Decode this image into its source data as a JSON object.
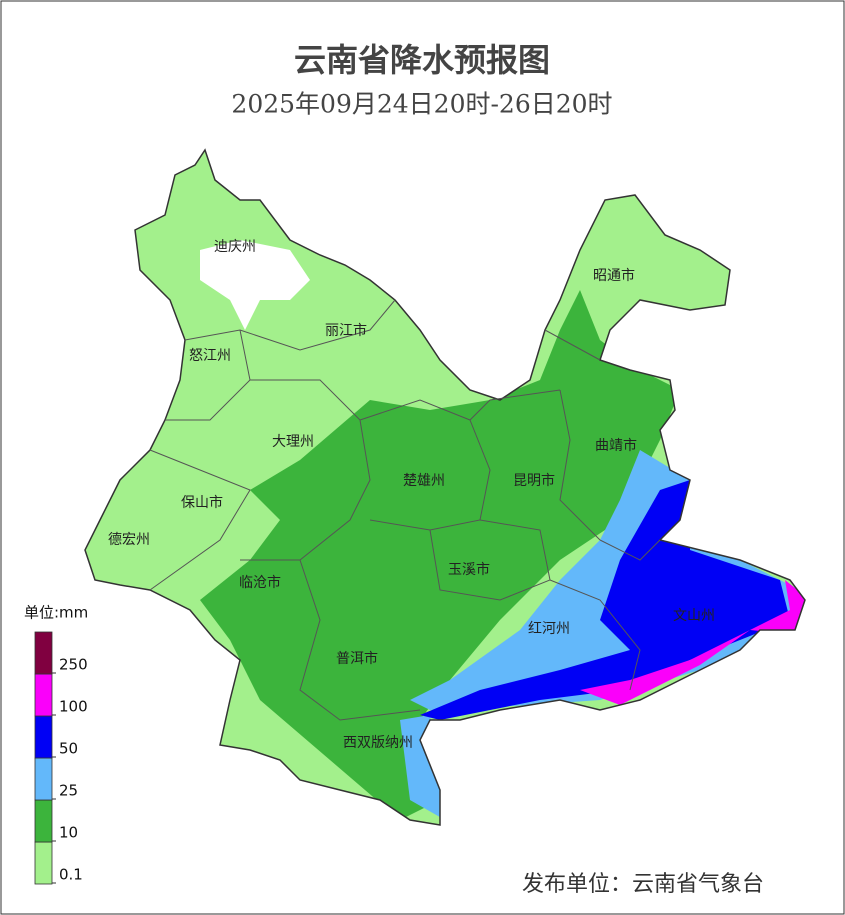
{
  "header": {
    "title": "云南省降水预报图",
    "subtitle": "2025年09月24日20时-26日20时"
  },
  "regions": [
    "迪庆州",
    "丽江市",
    "怒江州",
    "大理州",
    "保山市",
    "德宏州",
    "楚雄州",
    "昆明市",
    "曲靖市",
    "昭通市",
    "玉溪市",
    "临沧市",
    "普洱市",
    "红河州",
    "文山州",
    "西双版纳州"
  ],
  "legend": {
    "title": "单位:mm",
    "ticks": [
      0.1,
      10,
      25,
      50,
      100,
      250
    ],
    "colors": [
      "#a3f08c",
      "#3cb43c",
      "#63b8fa",
      "#0000f5",
      "#fa00fa",
      "#800040"
    ]
  },
  "footer": {
    "publisher": "发布单位：云南省气象台"
  }
}
